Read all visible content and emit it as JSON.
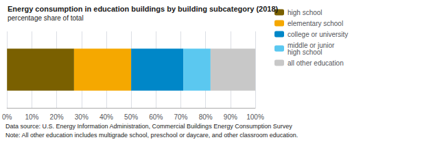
{
  "chart_data": {
    "type": "bar",
    "title": "Energy consumption in education buildings by building subcategory (2018)",
    "subtitle": "percentage share of total",
    "orientation": "horizontal",
    "stacked": true,
    "categories": [
      null
    ],
    "series": [
      {
        "name": "high school",
        "color": "#7a6000",
        "values": [
          0.27
        ]
      },
      {
        "name": "elementary school",
        "color": "#f5a800",
        "values": [
          0.23
        ]
      },
      {
        "name": "college or university",
        "color": "#0087c8",
        "values": [
          0.21
        ]
      },
      {
        "name": "middle or junior\nhigh school",
        "color": "#5bc8f0",
        "values": [
          0.11
        ]
      },
      {
        "name": "all other education",
        "color": "#c8c8c8",
        "values": [
          0.18
        ]
      }
    ],
    "xlim": [
      0,
      1
    ],
    "xticks": [
      {
        "value": 0.0,
        "label": "0%"
      },
      {
        "value": 0.1,
        "label": "10%"
      },
      {
        "value": 0.2,
        "label": "20%"
      },
      {
        "value": 0.3,
        "label": "30%"
      },
      {
        "value": 0.4,
        "label": "40%"
      },
      {
        "value": 0.5,
        "label": "50%"
      },
      {
        "value": 0.6,
        "label": "60%"
      },
      {
        "value": 0.7,
        "label": "70%"
      },
      {
        "value": 0.8,
        "label": "80%"
      },
      {
        "value": 0.9,
        "label": "90%"
      },
      {
        "value": 1.0,
        "label": "100%"
      }
    ],
    "grid": true,
    "tick_labels": "x",
    "legend": "right",
    "annotations": [
      "Data source: U.S. Energy Information Administration, Commercial Buildings Energy Consumption Survey",
      "Note: All other education includes multigrade school, preschool or daycare, and other classroom education."
    ]
  }
}
